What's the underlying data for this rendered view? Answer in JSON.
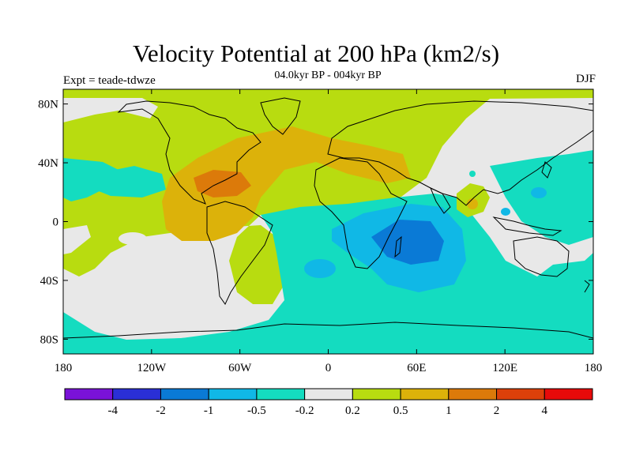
{
  "title": "Velocity Potential at 200 hPa (km2/s)",
  "subtitle": "04.0kyr BP - 004kyr BP",
  "expt_label": "Expt = teade-tdwze",
  "season": "DJF",
  "map": {
    "lon_ticks": [
      "180",
      "120W",
      "60W",
      "0",
      "60E",
      "120E",
      "180"
    ],
    "lat_ticks": [
      "80N",
      "40N",
      "0",
      "40S",
      "80S"
    ]
  },
  "colorbar": {
    "colors": [
      "#7a12d8",
      "#2a2fd6",
      "#0a7ad6",
      "#10b8e6",
      "#14dcc0",
      "#e8e8e8",
      "#b8dc10",
      "#dcb20a",
      "#dc7a0a",
      "#dc400a",
      "#e80a0a"
    ],
    "labels": [
      "-4",
      "-2",
      "-1",
      "-0.5",
      "-0.2",
      "0.2",
      "0.5",
      "1",
      "2",
      "4"
    ]
  },
  "field_colors": {
    "neutral": "#e8e8e8",
    "weak_positive": "#b8dc10",
    "positive": "#dcb20a",
    "strong_positive": "#dc7a0a",
    "weak_negative": "#14dcc0",
    "negative": "#10b8e6",
    "strong_negative": "#0a7ad6"
  }
}
